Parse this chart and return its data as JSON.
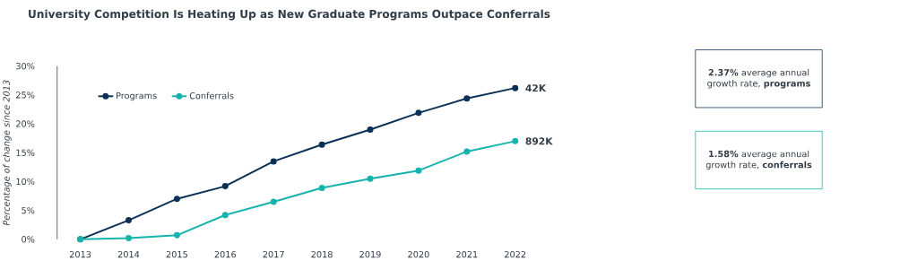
{
  "chart_data": {
    "type": "line",
    "title": "University Competition Is Heating Up as New Graduate Programs Outpace Conferrals",
    "ylabel": "Percentage of change since 2013",
    "categories": [
      "2013",
      "2014",
      "2015",
      "2016",
      "2017",
      "2018",
      "2019",
      "2020",
      "2021",
      "2022"
    ],
    "series": [
      {
        "name": "Programs",
        "color": "#0b3157",
        "values": [
          0,
          3.3,
          7.0,
          9.2,
          13.5,
          16.4,
          19.0,
          21.9,
          24.4,
          26.2
        ]
      },
      {
        "name": "Conferrals",
        "color": "#17b3ad",
        "values": [
          0,
          0.2,
          0.7,
          4.2,
          6.5,
          8.9,
          10.5,
          11.9,
          15.2,
          17.0
        ]
      }
    ],
    "ylim": [
      0,
      30
    ],
    "yticks": [
      {
        "value": 0,
        "label": "0%"
      },
      {
        "value": 5,
        "label": "5%"
      },
      {
        "value": 10,
        "label": "10%"
      },
      {
        "value": 15,
        "label": "15%"
      },
      {
        "value": 20,
        "label": "20%"
      },
      {
        "value": 25,
        "label": "25%"
      },
      {
        "value": 30,
        "label": "30%"
      }
    ],
    "annotations": [
      {
        "text": "42K",
        "x": "2022",
        "y": 26.2
      },
      {
        "text": "892K",
        "x": "2022",
        "y": 17.0
      },
      "**2.37%** average annual growth rate, **programs**",
      "**1.58%** average annual growth rate, **conferrals**"
    ],
    "legend": "top left",
    "marker": "circle",
    "line_style": "solid",
    "grid": false
  }
}
